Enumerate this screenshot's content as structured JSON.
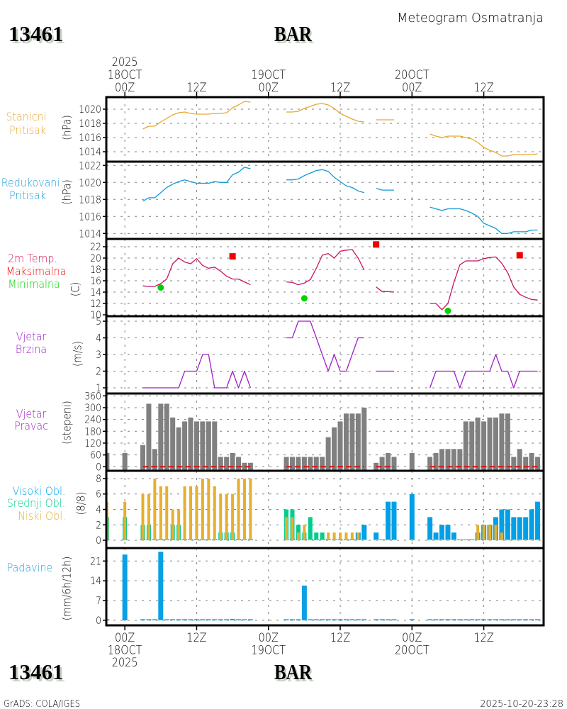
{
  "header": {
    "station_id": "13461",
    "station_name": "BAR",
    "subtitle": "Meteogram Osmatranja"
  },
  "footer": {
    "station_id": "13461",
    "station_name": "BAR",
    "credit": "GrADS: COLA/IGES",
    "timestamp": "2025-10-20-23:28"
  },
  "colors": {
    "station_pressure": "#e6a830",
    "reduced_pressure": "#1a9ed8",
    "temperature": "#c81464",
    "temp_max": "#f00000",
    "temp_min": "#00d200",
    "wind": "#a01ec8",
    "wind_direction_bar": "#808080",
    "zero_line": "#e01010",
    "cloud_high": "#00a0e6",
    "cloud_mid": "#00cc8c",
    "cloud_low": "#e6af2d",
    "precipitation": "#0aa0e6",
    "grid": "#808080"
  },
  "time_axis": {
    "unit": "hours since 2025-10-18 00Z",
    "xlim": [
      -3.1,
      70.0
    ],
    "ticks": [
      {
        "hour": 0,
        "top": [
          "2025",
          "18OCT",
          "00Z"
        ],
        "bottom": [
          "00Z",
          "18OCT",
          "2025"
        ]
      },
      {
        "hour": 12,
        "top": [
          "12Z"
        ],
        "bottom": [
          "12Z"
        ]
      },
      {
        "hour": 24,
        "top": [
          "19OCT",
          "00Z"
        ],
        "bottom": [
          "00Z",
          "19OCT"
        ]
      },
      {
        "hour": 36,
        "top": [
          "12Z"
        ],
        "bottom": [
          "12Z"
        ]
      },
      {
        "hour": 48,
        "top": [
          "20OCT",
          "00Z"
        ],
        "bottom": [
          "00Z",
          "20OCT"
        ]
      },
      {
        "hour": 60,
        "top": [
          "12Z"
        ],
        "bottom": [
          "12Z"
        ]
      }
    ],
    "obs_hours": [
      -3,
      0,
      3,
      4,
      5,
      6,
      7,
      8,
      9,
      10,
      11,
      12,
      13,
      14,
      15,
      16,
      17,
      18,
      19,
      20,
      21,
      27,
      28,
      29,
      30,
      31,
      32,
      33,
      34,
      35,
      36,
      37,
      38,
      39,
      40,
      42,
      43,
      44,
      45,
      48,
      51,
      52,
      53,
      54,
      55,
      56,
      57,
      58,
      59,
      60,
      61,
      62,
      63,
      64,
      65,
      66,
      67,
      68,
      69
    ]
  },
  "chart_data": [
    {
      "id": "station-pressure",
      "type": "line",
      "label_lines": [
        {
          "text": "Stanicni",
          "color": "#e6a830"
        },
        {
          "text": "Pritisak",
          "color": "#e6a830"
        }
      ],
      "ylabel": "(hPa)",
      "ylim": [
        1012.6,
        1021.7
      ],
      "yticks": [
        1014,
        1016,
        1018,
        1020
      ],
      "grid": true,
      "series": [
        {
          "name": "Stanicni Pritisak",
          "color": "#e6a830",
          "segments": [
            {
              "start_hour": 3,
              "values": [
                1017.2,
                1017.6,
                1017.6,
                1018.2,
                1018.7,
                1019.2,
                1019.5,
                1019.6,
                1019.4,
                1019.3,
                1019.3,
                1019.3,
                1019.4,
                1019.4,
                1019.5,
                1020.2,
                1020.6,
                1021.1,
                1021.0
              ]
            },
            {
              "start_hour": 27,
              "values": [
                1019.6,
                1019.6,
                1019.7,
                1020.1,
                1020.4,
                1020.7,
                1020.8,
                1020.6,
                1020.1,
                1019.4,
                1019.0,
                1018.6,
                1018.3,
                1018.2
              ]
            },
            {
              "start_hour": 42,
              "values": [
                1018.5,
                1018.5,
                1018.5,
                1018.5
              ]
            },
            {
              "start_hour": 51,
              "values": [
                1016.5,
                1016.2,
                1016.0,
                1016.2,
                1016.2,
                1016.2,
                1016.0,
                1015.8,
                1015.3,
                1014.6,
                1014.2,
                1013.9,
                1013.4,
                1013.4,
                1013.6,
                1013.6,
                1013.6,
                1013.6,
                1013.7
              ]
            }
          ]
        }
      ]
    },
    {
      "id": "reduced-pressure",
      "type": "line",
      "label_lines": [
        {
          "text": "Redukovani",
          "color": "#1a9ed8"
        },
        {
          "text": "Pritisak",
          "color": "#1a9ed8"
        }
      ],
      "ylabel": "(hPa)",
      "ylim": [
        1013.36,
        1022.44
      ],
      "yticks": [
        1014,
        1016,
        1018,
        1020,
        1022
      ],
      "grid": true,
      "series": [
        {
          "name": "Redukovani Pritisak",
          "color": "#0c9cd8",
          "segments": [
            {
              "start_hour": 3,
              "values": [
                1017.8,
                1018.2,
                1018.2,
                1018.8,
                1019.4,
                1019.8,
                1020.1,
                1020.3,
                1020.1,
                1019.9,
                1019.9,
                1019.9,
                1020.1,
                1020.0,
                1020.0,
                1020.9,
                1021.2,
                1021.8,
                1021.6
              ]
            },
            {
              "start_hour": 27,
              "values": [
                1020.3,
                1020.3,
                1020.4,
                1020.8,
                1021.1,
                1021.4,
                1021.5,
                1021.3,
                1020.6,
                1020.1,
                1019.6,
                1019.4,
                1019.0,
                1018.8
              ]
            },
            {
              "start_hour": 42,
              "values": [
                1019.3,
                1019.1,
                1019.1,
                1019.1
              ]
            },
            {
              "start_hour": 51,
              "values": [
                1017.1,
                1016.9,
                1016.7,
                1016.9,
                1016.9,
                1016.9,
                1016.7,
                1016.4,
                1016.0,
                1015.2,
                1014.9,
                1014.6,
                1014.0,
                1014.0,
                1014.2,
                1014.2,
                1014.2,
                1014.4,
                1014.4
              ]
            }
          ]
        }
      ]
    },
    {
      "id": "temperature",
      "type": "line",
      "label_lines": [
        {
          "text": "2m Temp.",
          "color": "#d0145a"
        },
        {
          "text": "Maksimalna",
          "color": "#f00000"
        },
        {
          "text": "Minimalna",
          "color": "#00d200"
        }
      ],
      "ylabel": "(C)",
      "ylim": [
        9.75,
        23.375
      ],
      "yticks": [
        10,
        12,
        14,
        16,
        18,
        20,
        22
      ],
      "grid": true,
      "series": [
        {
          "name": "2m Temp.",
          "color": "#c81464",
          "segments": [
            {
              "start_hour": 3,
              "values": [
                15.1,
                15.0,
                15.0,
                15.5,
                16.3,
                19.0,
                20.0,
                19.3,
                19.0,
                19.9,
                18.7,
                18.2,
                18.4,
                17.7,
                16.8,
                16.3,
                16.3,
                15.8,
                15.3
              ]
            },
            {
              "start_hour": 27,
              "values": [
                15.8,
                15.7,
                15.3,
                15.6,
                16.2,
                18.2,
                20.5,
                20.8,
                20.0,
                21.2,
                21.4,
                21.5,
                20.0,
                17.9
              ]
            },
            {
              "start_hour": 42,
              "values": [
                14.9,
                14.1,
                14.1,
                14.0
              ]
            },
            {
              "start_hour": 51,
              "values": [
                12.0,
                12.0,
                10.9,
                12.0,
                15.7,
                18.8,
                19.5,
                19.5,
                19.5,
                19.9,
                20.1,
                20.2,
                19.1,
                17.4,
                14.9,
                13.6,
                13.1,
                12.7,
                12.6
              ]
            }
          ]
        }
      ],
      "max_points": {
        "name": "Maksimalna",
        "color": "#f00000",
        "points": [
          {
            "hour": 18,
            "value": 20.3
          },
          {
            "hour": 42,
            "value": 22.4
          },
          {
            "hour": 66,
            "value": 20.5
          }
        ]
      },
      "min_points": {
        "name": "Minimalna",
        "color": "#00d200",
        "points": [
          {
            "hour": 6,
            "value": 14.8
          },
          {
            "hour": 30,
            "value": 12.9
          },
          {
            "hour": 54,
            "value": 10.7
          }
        ]
      }
    },
    {
      "id": "wind-speed",
      "type": "line",
      "label_lines": [
        {
          "text": "Vjetar",
          "color": "#a01ec8"
        },
        {
          "text": "Brzina",
          "color": "#a01ec8"
        }
      ],
      "ylabel": "(m/s)",
      "ylim": [
        0.66,
        5.3
      ],
      "yticks": [
        1,
        2,
        3,
        4,
        5
      ],
      "grid": true,
      "series": [
        {
          "name": "Vjetar Brzina",
          "color": "#a01ec8",
          "segments": [
            {
              "start_hour": 3,
              "values": [
                1,
                1,
                1,
                1,
                1,
                1,
                1,
                2,
                2,
                2,
                3,
                3,
                1,
                1,
                1,
                2,
                1,
                2,
                1
              ]
            },
            {
              "start_hour": 27,
              "values": [
                4,
                4,
                5,
                5,
                5,
                4,
                3,
                2,
                3,
                2,
                2,
                3,
                4,
                4
              ]
            },
            {
              "start_hour": 42,
              "values": [
                2,
                2,
                2,
                2
              ]
            },
            {
              "start_hour": 51,
              "values": [
                1,
                2,
                2,
                2,
                2,
                1,
                2,
                2,
                2,
                2,
                2,
                3,
                2,
                2,
                1,
                2,
                2,
                2,
                2
              ]
            }
          ]
        }
      ]
    },
    {
      "id": "wind-direction",
      "type": "bar",
      "label_lines": [
        {
          "text": "Vjetar",
          "color": "#a01ec8"
        },
        {
          "text": "Pravac",
          "color": "#a01ec8"
        }
      ],
      "ylabel": "(stepeni)",
      "ylim": [
        -20.5,
        371.9
      ],
      "yticks": [
        0,
        60,
        120,
        180,
        240,
        300,
        360
      ],
      "grid": true,
      "series": [
        {
          "name": "Vjetar Pravac",
          "color": "#808080",
          "values": [
            70,
            70,
            110,
            320,
            90,
            320,
            320,
            250,
            200,
            230,
            250,
            230,
            230,
            230,
            230,
            50,
            50,
            70,
            50,
            20,
            20,
            50,
            50,
            50,
            50,
            50,
            50,
            50,
            150,
            200,
            230,
            270,
            270,
            270,
            300,
            20,
            50,
            70,
            50,
            70,
            50,
            70,
            90,
            90,
            90,
            90,
            230,
            230,
            250,
            230,
            250,
            250,
            270,
            270,
            50,
            90,
            50,
            70,
            50
          ]
        }
      ],
      "zero_line": {
        "color": "#e01010",
        "segments": [
          [
            3,
            21
          ],
          [
            27,
            40
          ],
          [
            42,
            45
          ],
          [
            51,
            69
          ]
        ]
      }
    },
    {
      "id": "clouds",
      "type": "bar",
      "label_lines": [
        {
          "text": "Visoki Obl.",
          "color": "#00a0e6"
        },
        {
          "text": "Srednji Obl.",
          "color": "#00cc8c"
        },
        {
          "text": "Niski Obl.",
          "color": "#e6af2d"
        }
      ],
      "ylabel": "(8/8)",
      "ylim": [
        -1.01,
        9.01
      ],
      "yticks": [
        0,
        2,
        4,
        6,
        8
      ],
      "grid": true,
      "series": [
        {
          "name": "Visoki Obl.",
          "key": "high",
          "color": "#00a0e6",
          "values": [
            0,
            0,
            0,
            0,
            0,
            0,
            0,
            0,
            0,
            0,
            0,
            0,
            0,
            0,
            0,
            0,
            0,
            0,
            0,
            0,
            0,
            0,
            0,
            0,
            0,
            0,
            0,
            0,
            0,
            0,
            0,
            0,
            0,
            1,
            2,
            1,
            0,
            5,
            5,
            6,
            3,
            1,
            2,
            2,
            1,
            0,
            0,
            0,
            1,
            2,
            2,
            3,
            4,
            4,
            3,
            3,
            3,
            4,
            5
          ]
        },
        {
          "name": "Srednji Obl.",
          "key": "mid",
          "color": "#00cc8c",
          "values": [
            3,
            3,
            2,
            2,
            0,
            0,
            0,
            2,
            2,
            0,
            0,
            0,
            0,
            0,
            0,
            1,
            1,
            1,
            0,
            0,
            0,
            4,
            4,
            2,
            1,
            3,
            1,
            1,
            0,
            0,
            0,
            0,
            0,
            0,
            0,
            0,
            0,
            0,
            0,
            0,
            0,
            0,
            0,
            0,
            0,
            0,
            0,
            0,
            0,
            0,
            0,
            0,
            0,
            0,
            0,
            0,
            0,
            0,
            0
          ]
        },
        {
          "name": "Niski Obl.",
          "key": "low",
          "color": "#e6af2d",
          "values": [
            5,
            5,
            6,
            6,
            8,
            7,
            7,
            4,
            4,
            7,
            7,
            7,
            8,
            8,
            7,
            6,
            6,
            6,
            8,
            8,
            8,
            3,
            3,
            1,
            2,
            0,
            0,
            0,
            1,
            1,
            1,
            1,
            1,
            1,
            0,
            0,
            0,
            0,
            0,
            0,
            0,
            0,
            0,
            0,
            0,
            0,
            0,
            0,
            2,
            2,
            2,
            2,
            1,
            0,
            0,
            0,
            0,
            0,
            0
          ]
        }
      ]
    },
    {
      "id": "precipitation",
      "type": "bar",
      "label_lines": [
        {
          "text": "Padavine",
          "color": "#1e9fdb"
        }
      ],
      "ylabel": "(mm/6h/12h)",
      "ylim": [
        -1.79,
        25.6
      ],
      "yticks": [
        0,
        7,
        14,
        21
      ],
      "grid": true,
      "series": [
        {
          "name": "Padavine",
          "color": "#0aa0e6",
          "values": [
            0,
            23.3,
            0,
            0,
            0,
            24.3,
            0,
            0,
            0,
            0,
            0,
            0,
            0,
            0,
            0,
            0,
            0,
            0.5,
            0,
            0,
            0,
            0,
            0,
            0,
            12.3,
            0,
            0,
            0,
            0,
            0,
            0,
            0,
            0,
            0,
            0,
            0,
            0,
            0,
            0,
            0,
            0,
            0,
            0,
            0,
            0,
            0,
            0,
            0,
            0,
            0,
            0,
            0,
            0,
            0,
            0,
            0,
            0,
            0,
            0
          ]
        }
      ]
    }
  ]
}
